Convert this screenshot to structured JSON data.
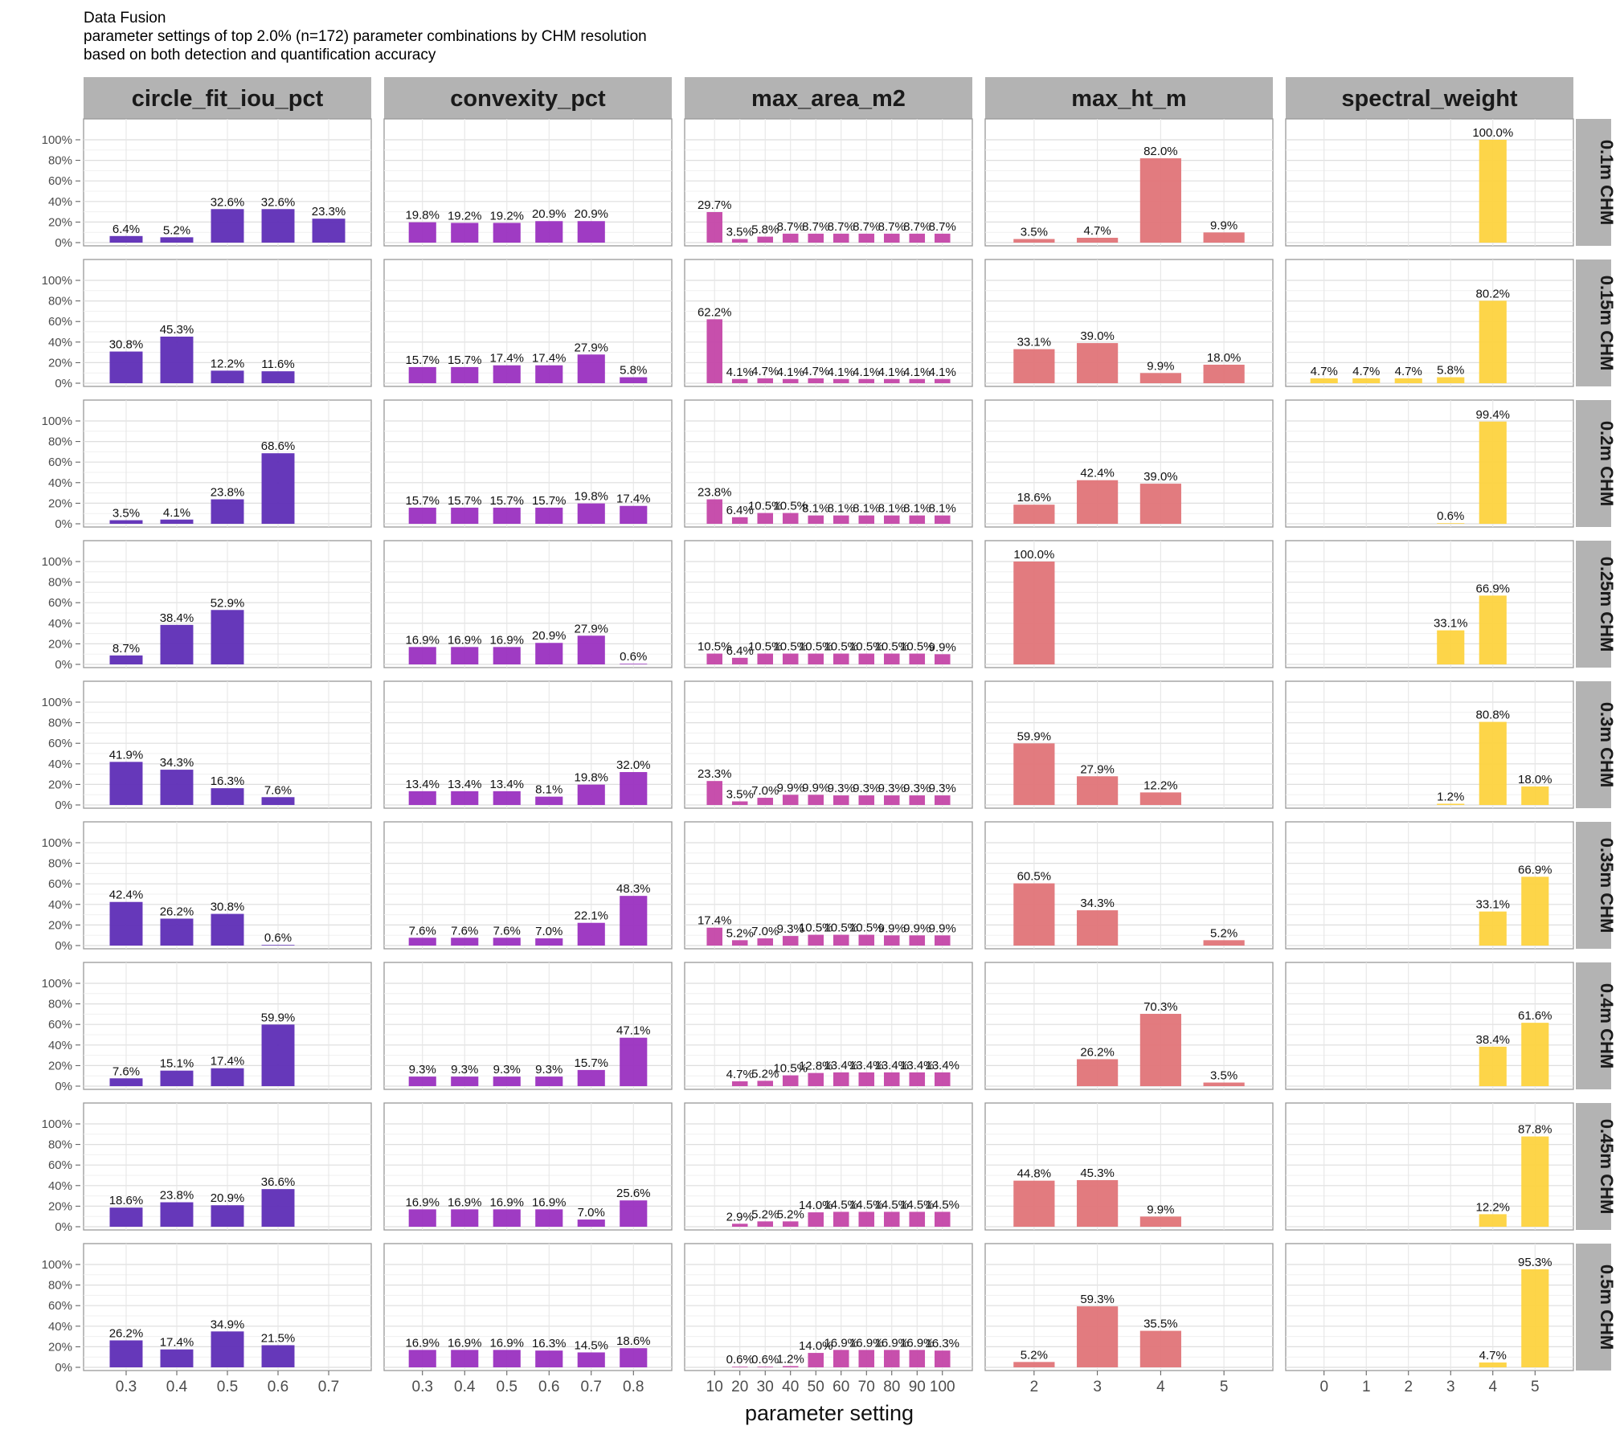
{
  "title": "Data Fusion",
  "subtitle_lines": [
    "parameter settings of top 2.0% (n=172) parameter combinations by CHM resolution",
    "based on both detection and quantification accuracy"
  ],
  "chart_data": {
    "type": "bar",
    "layout": "facet_grid",
    "xlabel": "parameter setting",
    "ylabel": "",
    "ylim": [
      0,
      1
    ],
    "y_ticks": [
      "0%",
      "20%",
      "40%",
      "60%",
      "80%",
      "100%"
    ],
    "y_tick_values": [
      0,
      0.2,
      0.4,
      0.6,
      0.8,
      1.0
    ],
    "grid": true,
    "legend": "none",
    "rows": [
      "0.1m CHM",
      "0.15m CHM",
      "0.2m CHM",
      "0.25m CHM",
      "0.3m CHM",
      "0.35m CHM",
      "0.4m CHM",
      "0.45m CHM",
      "0.5m CHM"
    ],
    "columns": [
      {
        "name": "circle_fit_iou_pct",
        "color": "#5E2DB6",
        "categories": [
          "0.3",
          "0.4",
          "0.5",
          "0.6",
          "0.7"
        ],
        "values": [
          [
            6.4,
            5.2,
            32.6,
            32.6,
            23.3
          ],
          [
            30.8,
            45.3,
            12.2,
            11.6,
            null
          ],
          [
            3.5,
            4.1,
            23.8,
            68.6,
            null
          ],
          [
            8.7,
            38.4,
            52.9,
            null,
            null
          ],
          [
            41.9,
            34.3,
            16.3,
            7.6,
            null
          ],
          [
            42.4,
            26.2,
            30.8,
            0.6,
            null
          ],
          [
            7.6,
            15.1,
            17.4,
            59.9,
            null
          ],
          [
            18.6,
            23.8,
            20.9,
            36.6,
            null
          ],
          [
            26.2,
            17.4,
            34.9,
            21.5,
            null
          ]
        ]
      },
      {
        "name": "convexity_pct",
        "color": "#9A30C0",
        "categories": [
          "0.3",
          "0.4",
          "0.5",
          "0.6",
          "0.7",
          "0.8"
        ],
        "values": [
          [
            19.8,
            19.2,
            19.2,
            20.9,
            20.9,
            null
          ],
          [
            15.7,
            15.7,
            17.4,
            17.4,
            27.9,
            5.8
          ],
          [
            15.7,
            15.7,
            15.7,
            15.7,
            19.8,
            17.4
          ],
          [
            16.9,
            16.9,
            16.9,
            20.9,
            27.9,
            0.6
          ],
          [
            13.4,
            13.4,
            13.4,
            8.1,
            19.8,
            32.0
          ],
          [
            7.6,
            7.6,
            7.6,
            7.0,
            22.1,
            48.3
          ],
          [
            9.3,
            9.3,
            9.3,
            9.3,
            15.7,
            47.1
          ],
          [
            16.9,
            16.9,
            16.9,
            16.9,
            7.0,
            25.6
          ],
          [
            16.9,
            16.9,
            16.9,
            16.3,
            14.5,
            18.6
          ]
        ]
      },
      {
        "name": "max_area_m2",
        "color": "#C446A8",
        "categories": [
          "10",
          "20",
          "30",
          "40",
          "50",
          "60",
          "70",
          "80",
          "90",
          "100"
        ],
        "values": [
          [
            29.7,
            3.5,
            5.8,
            8.7,
            8.7,
            8.7,
            8.7,
            8.7,
            8.7,
            8.7
          ],
          [
            62.2,
            4.1,
            4.7,
            4.1,
            4.7,
            4.1,
            4.1,
            4.1,
            4.1,
            4.1
          ],
          [
            23.8,
            6.4,
            10.5,
            10.5,
            8.1,
            8.1,
            8.1,
            8.1,
            8.1,
            8.1
          ],
          [
            10.5,
            6.4,
            10.5,
            10.5,
            10.5,
            10.5,
            10.5,
            10.5,
            10.5,
            9.9
          ],
          [
            23.3,
            3.5,
            7.0,
            9.9,
            9.9,
            9.3,
            9.3,
            9.3,
            9.3,
            9.3
          ],
          [
            17.4,
            5.2,
            7.0,
            9.3,
            10.5,
            10.5,
            10.5,
            9.9,
            9.9,
            9.9
          ],
          [
            null,
            4.7,
            5.2,
            10.5,
            12.8,
            13.4,
            13.4,
            13.4,
            13.4,
            13.4
          ],
          [
            null,
            2.9,
            5.2,
            5.2,
            14.0,
            14.5,
            14.5,
            14.5,
            14.5,
            14.5
          ],
          [
            null,
            0.6,
            0.6,
            1.2,
            14.0,
            16.9,
            16.9,
            16.9,
            16.9,
            16.3
          ]
        ]
      },
      {
        "name": "max_ht_m",
        "color": "#E07478",
        "categories": [
          "2",
          "3",
          "4",
          "5"
        ],
        "values": [
          [
            3.5,
            4.7,
            82.0,
            9.9
          ],
          [
            33.1,
            39.0,
            9.9,
            18.0
          ],
          [
            18.6,
            42.4,
            39.0,
            null
          ],
          [
            100.0,
            null,
            null,
            null
          ],
          [
            59.9,
            27.9,
            12.2,
            null
          ],
          [
            60.5,
            34.3,
            null,
            5.2
          ],
          [
            null,
            26.2,
            70.3,
            3.5
          ],
          [
            44.8,
            45.3,
            9.9,
            null
          ],
          [
            5.2,
            59.3,
            35.5,
            null
          ]
        ]
      },
      {
        "name": "spectral_weight",
        "color": "#FDD33F",
        "categories": [
          "0",
          "1",
          "2",
          "3",
          "4",
          "5"
        ],
        "values": [
          [
            null,
            null,
            null,
            null,
            100.0,
            null
          ],
          [
            4.7,
            4.7,
            4.7,
            5.8,
            80.2,
            null
          ],
          [
            null,
            null,
            null,
            0.6,
            99.4,
            null
          ],
          [
            null,
            null,
            null,
            33.1,
            66.9,
            null
          ],
          [
            null,
            null,
            null,
            1.2,
            80.8,
            18.0
          ],
          [
            null,
            null,
            null,
            null,
            33.1,
            66.9
          ],
          [
            null,
            null,
            null,
            null,
            38.4,
            61.6
          ],
          [
            null,
            null,
            null,
            null,
            12.2,
            87.8
          ],
          [
            null,
            null,
            null,
            null,
            4.7,
            95.3
          ]
        ]
      }
    ]
  }
}
